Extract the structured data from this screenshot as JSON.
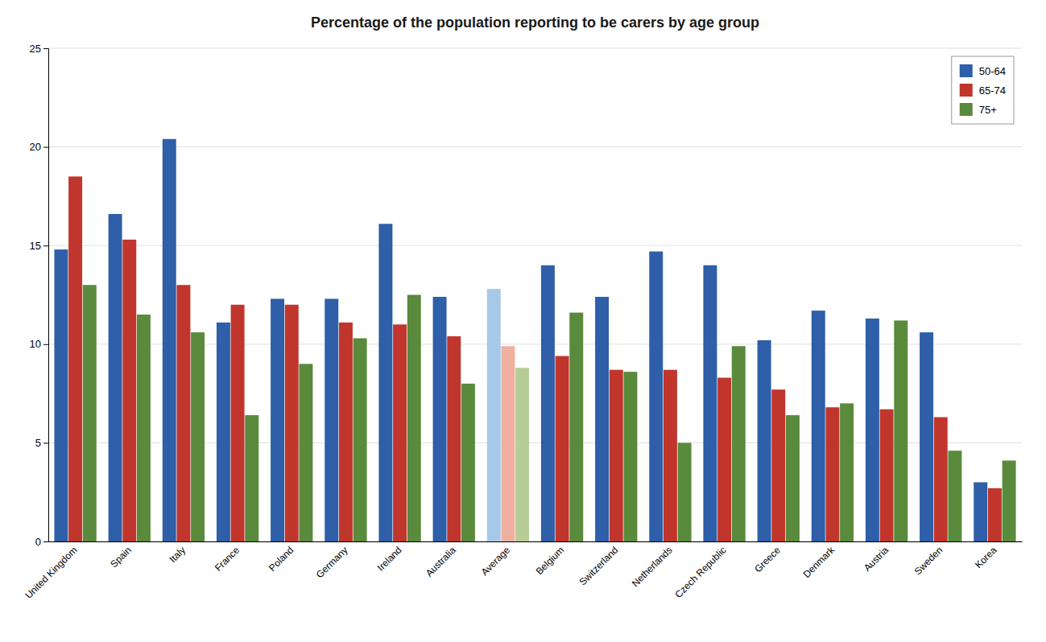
{
  "chart_data": {
    "type": "bar",
    "title": "Percentage of the population reporting to be carers by age group",
    "categories": [
      "United Kingdom",
      "Spain",
      "Italy",
      "France",
      "Poland",
      "Germany",
      "Ireland",
      "Australia",
      "Average",
      "Belgium",
      "Switzerland",
      "Netherlands",
      "Czech Republic",
      "Greece",
      "Denmark",
      "Austria",
      "Sweden",
      "Korea"
    ],
    "series": [
      {
        "name": "50-64",
        "color": "#2E5FA8",
        "colors": [
          "#2E5FA8",
          "#2E5FA8",
          "#2E5FA8",
          "#2E5FA8",
          "#2E5FA8",
          "#2E5FA8",
          "#2E5FA8",
          "#2E5FA8",
          "#A8C8E8",
          "#2E5FA8",
          "#2E5FA8",
          "#2E5FA8",
          "#2E5FA8",
          "#2E5FA8",
          "#2E5FA8",
          "#2E5FA8",
          "#2E5FA8",
          "#2E5FA8"
        ],
        "values": [
          14.8,
          16.6,
          20.4,
          11.1,
          12.3,
          12.3,
          16.1,
          12.4,
          12.8,
          14.0,
          12.4,
          14.7,
          14.0,
          10.2,
          11.7,
          11.3,
          10.6,
          3.0
        ]
      },
      {
        "name": "65-74",
        "color": "#C0362C",
        "colors": [
          "#C0362C",
          "#C0362C",
          "#C0362C",
          "#C0362C",
          "#C0362C",
          "#C0362C",
          "#C0362C",
          "#C0362C",
          "#F0B0A0",
          "#C0362C",
          "#C0362C",
          "#C0362C",
          "#C0362C",
          "#C0362C",
          "#C0362C",
          "#C0362C",
          "#C0362C",
          "#C0362C"
        ],
        "values": [
          18.5,
          15.3,
          13.0,
          12.0,
          12.0,
          11.1,
          11.0,
          10.4,
          9.9,
          9.4,
          8.7,
          8.7,
          8.3,
          7.7,
          6.8,
          6.7,
          6.3,
          2.7
        ]
      },
      {
        "name": "75+",
        "color": "#5A8A3C",
        "colors": [
          "#5A8A3C",
          "#5A8A3C",
          "#5A8A3C",
          "#5A8A3C",
          "#5A8A3C",
          "#5A8A3C",
          "#5A8A3C",
          "#5A8A3C",
          "#B8CC98",
          "#5A8A3C",
          "#5A8A3C",
          "#5A8A3C",
          "#5A8A3C",
          "#5A8A3C",
          "#5A8A3C",
          "#5A8A3C",
          "#5A8A3C",
          "#5A8A3C"
        ],
        "values": [
          13.0,
          11.5,
          10.6,
          6.4,
          9.0,
          10.3,
          12.5,
          8.0,
          8.8,
          11.6,
          8.6,
          5.0,
          9.9,
          6.4,
          7.0,
          11.2,
          4.6,
          4.1
        ]
      }
    ],
    "ylim": [
      0,
      25
    ],
    "yticks": [
      0,
      5,
      10,
      15,
      20,
      25
    ],
    "grid": true,
    "legend": "upper right"
  }
}
